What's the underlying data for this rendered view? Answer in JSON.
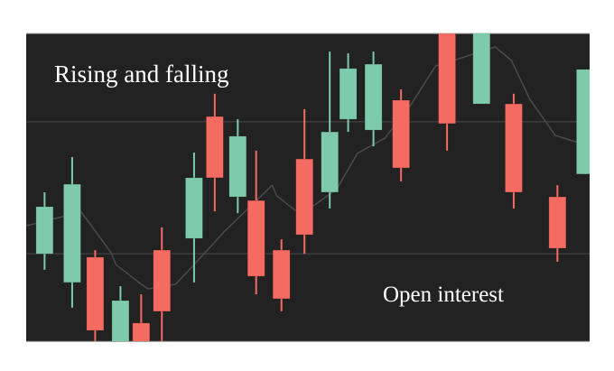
{
  "chart_data": {
    "type": "candlestick",
    "title": "",
    "annotations": [
      "Rising and falling",
      "Open interest"
    ],
    "xlim": [
      0,
      24.5
    ],
    "ylim": [
      0,
      100
    ],
    "grid": {
      "horizontal": [
        28.4,
        71.3
      ],
      "vertical": false
    },
    "axes_visible": false,
    "colors": {
      "background": "#222222",
      "rising": "#7ecbab",
      "falling": "#f46b61",
      "grid": "#3d3d3d",
      "line": "#4a4a4a"
    },
    "candles": [
      {
        "x": 0.8,
        "open": 28.4,
        "high": 48.4,
        "low": 23.2,
        "close": 43.7
      },
      {
        "x": 2.0,
        "open": 19.1,
        "high": 59.8,
        "low": 10.9,
        "close": 51.0
      },
      {
        "x": 3.0,
        "open": 27.3,
        "high": 29.6,
        "low": -2.0,
        "close": 3.5
      },
      {
        "x": 4.1,
        "open": -3.5,
        "high": 17.9,
        "low": -5.0,
        "close": 13.2
      },
      {
        "x": 5.0,
        "open": 5.9,
        "high": 15.2,
        "low": -8.0,
        "close": -6.0
      },
      {
        "x": 5.9,
        "open": 29.6,
        "high": 37.0,
        "low": -3.0,
        "close": 9.7
      },
      {
        "x": 7.3,
        "open": 33.4,
        "high": 61.3,
        "low": 19.1,
        "close": 53.1
      },
      {
        "x": 8.2,
        "open": 73.0,
        "high": 80.4,
        "low": 42.2,
        "close": 53.1
      },
      {
        "x": 9.2,
        "open": 46.9,
        "high": 72.1,
        "low": 41.6,
        "close": 66.6
      },
      {
        "x": 10.0,
        "open": 45.7,
        "high": 61.9,
        "low": 15.2,
        "close": 21.1
      },
      {
        "x": 11.1,
        "open": 29.6,
        "high": 33.1,
        "low": 9.7,
        "close": 13.8
      },
      {
        "x": 12.1,
        "open": 59.2,
        "high": 75.4,
        "low": 28.4,
        "close": 34.6
      },
      {
        "x": 13.2,
        "open": 48.4,
        "high": 94.1,
        "low": 43.1,
        "close": 68.0
      },
      {
        "x": 14.0,
        "open": 72.1,
        "high": 93.5,
        "low": 68.0,
        "close": 88.6
      },
      {
        "x": 15.1,
        "open": 68.6,
        "high": 94.1,
        "low": 63.3,
        "close": 90.0
      },
      {
        "x": 16.3,
        "open": 78.3,
        "high": 81.8,
        "low": 51.9,
        "close": 56.3
      },
      {
        "x": 18.3,
        "open": 105,
        "high": 108,
        "low": 61.9,
        "close": 70.7
      },
      {
        "x": 19.8,
        "open": 77.1,
        "high": 108,
        "low": 77.1,
        "close": 103
      },
      {
        "x": 21.2,
        "open": 77.1,
        "high": 80.4,
        "low": 43.1,
        "close": 48.4
      },
      {
        "x": 23.1,
        "open": 46.9,
        "high": 50.7,
        "low": 25.8,
        "close": 30.2
      },
      {
        "x": 24.3,
        "open": 54.3,
        "high": 88.3,
        "low": 54.3,
        "close": 88.3
      }
    ],
    "line": [
      [
        0,
        37.5
      ],
      [
        1.6,
        40.5
      ],
      [
        2.4,
        41.9
      ],
      [
        3.7,
        28.7
      ],
      [
        3.9,
        24.9
      ],
      [
        4.9,
        19.1
      ],
      [
        5.3,
        17.0
      ],
      [
        6.5,
        18.5
      ],
      [
        7.3,
        24.9
      ],
      [
        8.6,
        35.5
      ],
      [
        10.7,
        50.7
      ],
      [
        10.9,
        47.2
      ],
      [
        11.7,
        42.5
      ],
      [
        12.2,
        42.5
      ],
      [
        13.5,
        49.3
      ],
      [
        14.4,
        61.0
      ],
      [
        15.6,
        66.0
      ],
      [
        16.7,
        76.5
      ],
      [
        17.8,
        89.4
      ],
      [
        19.2,
        92.7
      ],
      [
        20.4,
        95.6
      ],
      [
        21.1,
        91.2
      ],
      [
        21.9,
        78.6
      ],
      [
        22.4,
        73.3
      ],
      [
        23.0,
        66.9
      ],
      [
        24.0,
        64.5
      ],
      [
        24.5,
        64.5
      ]
    ]
  }
}
